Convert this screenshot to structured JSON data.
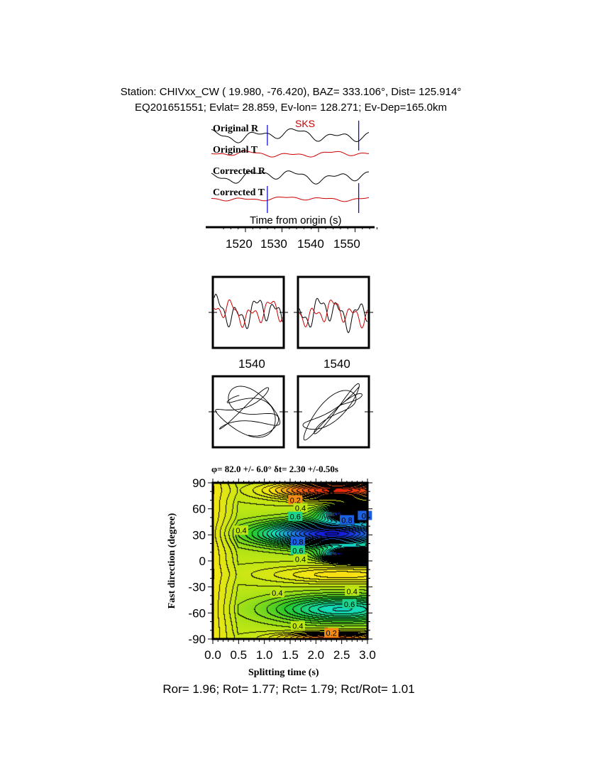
{
  "header": {
    "line1": "Station: CHIVxx_CW (  19.980,  -76.420), BAZ=  333.106°, Dist=  125.914°",
    "line2": "EQ201651551; Evlat=  28.859, Ev-lon= 128.271; Ev-Dep=165.0km"
  },
  "traces": {
    "labels": [
      "Original R",
      "Original T",
      "Corrected R",
      "Corrected T"
    ],
    "phase": "SKS",
    "xlabel": "Time from origin (s)",
    "xticks": [
      "1520",
      "1530",
      "1540",
      "1550"
    ],
    "window_start_s": 1526,
    "window_end_s": 1551,
    "colors": {
      "radial": "#000000",
      "transverse": "#cc0000",
      "window": "#0000cc"
    }
  },
  "waveform_panels": {
    "xtick_left": "1540",
    "xtick_right": "1540"
  },
  "chart_data": {
    "type": "heatmap",
    "title": "φ= 82.0 +/- 6.0° δt= 2.30 +/-0.50s",
    "xlabel": "Splitting time (s)",
    "ylabel": "Fast direction (degree)",
    "xlim": [
      0.0,
      3.0
    ],
    "ylim": [
      -90,
      90
    ],
    "xticks": [
      "0.0",
      "0.5",
      "1.0",
      "1.5",
      "2.0",
      "2.5",
      "3.0"
    ],
    "yticks": [
      "90",
      "60",
      "30",
      "0",
      "-30",
      "-60",
      "-90"
    ],
    "best_fit": {
      "phi": 82.0,
      "phi_err": 6.0,
      "dt": 2.3,
      "dt_err": 0.5
    },
    "contour_labels": [
      {
        "text": "0.2",
        "x": 1.6,
        "y": 70
      },
      {
        "text": "0.4",
        "x": 1.7,
        "y": 61
      },
      {
        "text": "0.6",
        "x": 1.6,
        "y": 51
      },
      {
        "text": "0.8",
        "x": 2.6,
        "y": 47
      },
      {
        "text": "0.",
        "x": 2.95,
        "y": 52
      },
      {
        "text": "0.4",
        "x": 0.55,
        "y": 35
      },
      {
        "text": "0.8",
        "x": 1.65,
        "y": 22
      },
      {
        "text": "0.6",
        "x": 1.65,
        "y": 12
      },
      {
        "text": "0.4",
        "x": 1.7,
        "y": 2
      },
      {
        "text": "0.4",
        "x": 1.25,
        "y": -37
      },
      {
        "text": "0.4",
        "x": 2.7,
        "y": -35
      },
      {
        "text": "0.6",
        "x": 2.65,
        "y": -50
      },
      {
        "text": "0.4",
        "x": 1.65,
        "y": -75
      },
      {
        "text": "0.2",
        "x": 2.3,
        "y": -83
      }
    ]
  },
  "footer": "Ror= 1.96; Rot= 1.77; Rct= 1.79; Rct/Rot= 1.01"
}
